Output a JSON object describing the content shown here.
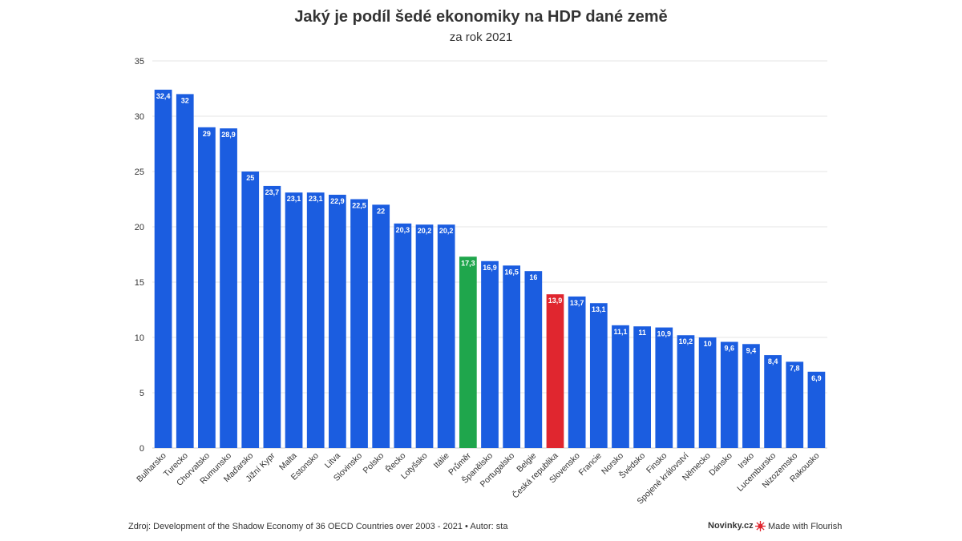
{
  "chart_data": {
    "type": "bar",
    "title": "Jaký je podíl šedé ekonomiky na HDP dané země",
    "subtitle": "za rok 2021",
    "xlabel": "",
    "ylabel": "",
    "ylim": [
      0,
      35
    ],
    "yticks": [
      0,
      5,
      10,
      15,
      20,
      25,
      30,
      35
    ],
    "grid": true,
    "categories": [
      "Bulharsko",
      "Turecko",
      "Chorvatsko",
      "Rumunsko",
      "Maďarsko",
      "Jižní Kypr",
      "Malta",
      "Estonsko",
      "Litva",
      "Slovinsko",
      "Polsko",
      "Řecko",
      "Lotyšsko",
      "Itálie",
      "Průměr",
      "Španělsko",
      "Portugalsko",
      "Belgie",
      "Česká republika",
      "Slovensko",
      "Francie",
      "Norsko",
      "Švédsko",
      "Finsko",
      "Spojené království",
      "Německo",
      "Dánsko",
      "Irsko",
      "Lucembursko",
      "Nizozemsko",
      "Rakousko"
    ],
    "values": [
      32.4,
      32,
      29,
      28.9,
      25,
      23.7,
      23.1,
      23.1,
      22.9,
      22.5,
      22,
      20.3,
      20.2,
      20.2,
      17.3,
      16.9,
      16.5,
      16,
      13.9,
      13.7,
      13.1,
      11.1,
      11,
      10.9,
      10.2,
      10,
      9.6,
      9.4,
      8.4,
      7.8,
      6.9
    ],
    "value_labels": [
      "32,4",
      "32",
      "29",
      "28,9",
      "25",
      "23,7",
      "23,1",
      "23,1",
      "22,9",
      "22,5",
      "22",
      "20,3",
      "20,2",
      "20,2",
      "17,3",
      "16,9",
      "16,5",
      "16",
      "13,9",
      "13,7",
      "13,1",
      "11,1",
      "11",
      "10,9",
      "10,2",
      "10",
      "9,6",
      "9,4",
      "8,4",
      "7,8",
      "6,9"
    ],
    "colors": {
      "default": "#1b5de0",
      "Průměr": "#1fa64c",
      "Česká republika": "#e0262f",
      "grid": "#e6e6e6"
    }
  },
  "footer": {
    "source": "Zdroj: Development of the Shadow Economy of 36 OECD Countries over 2003 - 2021 • Autor: sta",
    "brand": "Novinky.cz",
    "flourish": "Made with Flourish",
    "flourish_icon": "flourish-burst-icon"
  }
}
